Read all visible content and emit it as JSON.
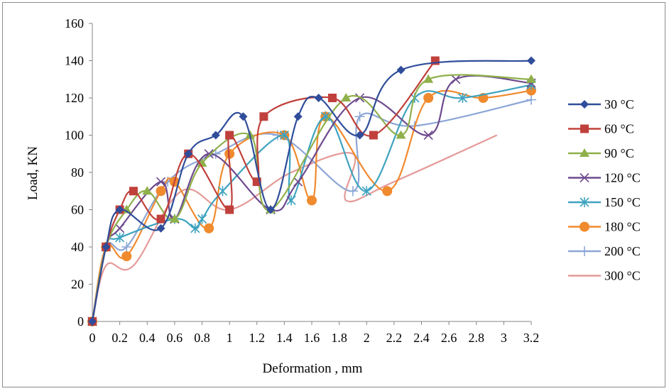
{
  "chart_data": {
    "type": "line",
    "title": "",
    "xlabel": "Deformation , mm",
    "ylabel": "Load, KN",
    "xlim": [
      0,
      3.2
    ],
    "ylim": [
      0,
      160
    ],
    "x_ticks": [
      "0",
      "0.2",
      "0.4",
      "0.6",
      "0.8",
      "1",
      "1.2",
      "1.4",
      "1.6",
      "1.8",
      "2",
      "2.2",
      "2.4",
      "2.6",
      "2.8",
      "3",
      "3.2"
    ],
    "y_ticks": [
      "0",
      "20",
      "40",
      "60",
      "80",
      "100",
      "120",
      "140",
      "160"
    ],
    "grid": false,
    "legend_position": "right",
    "series": [
      {
        "name": "30 °C",
        "color": "#2f4d9a",
        "marker": "diamond",
        "points": [
          [
            0,
            0
          ],
          [
            0.1,
            40
          ],
          [
            0.2,
            60
          ],
          [
            0.5,
            50
          ],
          [
            0.7,
            90
          ],
          [
            0.9,
            100
          ],
          [
            1.1,
            110
          ],
          [
            1.3,
            60
          ],
          [
            1.5,
            110
          ],
          [
            1.65,
            120
          ],
          [
            1.95,
            100
          ],
          [
            2.25,
            135
          ],
          [
            3.2,
            140
          ]
        ]
      },
      {
        "name": "60 °C",
        "color": "#c0403b",
        "marker": "square",
        "points": [
          [
            0,
            0
          ],
          [
            0.1,
            40
          ],
          [
            0.2,
            60
          ],
          [
            0.3,
            70
          ],
          [
            0.5,
            55
          ],
          [
            0.7,
            90
          ],
          [
            1,
            60
          ],
          [
            1,
            100
          ],
          [
            1.2,
            75
          ],
          [
            1.25,
            110
          ],
          [
            1.75,
            120
          ],
          [
            2.05,
            100
          ],
          [
            2.5,
            140
          ]
        ]
      },
      {
        "name": "90 °C",
        "color": "#8fb04a",
        "marker": "triangle",
        "points": [
          [
            0,
            0
          ],
          [
            0.1,
            40
          ],
          [
            0.25,
            60
          ],
          [
            0.4,
            70
          ],
          [
            0.6,
            55
          ],
          [
            0.8,
            85
          ],
          [
            1.15,
            100
          ],
          [
            1.3,
            60
          ],
          [
            1.85,
            120
          ],
          [
            2.25,
            100
          ],
          [
            2.45,
            130
          ],
          [
            3.2,
            130
          ]
        ]
      },
      {
        "name": "120 °C",
        "color": "#6e4a8e",
        "marker": "cross",
        "points": [
          [
            0,
            0
          ],
          [
            0.1,
            40
          ],
          [
            0.2,
            50
          ],
          [
            0.5,
            75
          ],
          [
            0.6,
            55
          ],
          [
            0.85,
            90
          ],
          [
            1.3,
            60
          ],
          [
            1.5,
            75
          ],
          [
            1.95,
            120
          ],
          [
            2.45,
            100
          ],
          [
            2.65,
            130
          ],
          [
            3.2,
            128
          ]
        ]
      },
      {
        "name": "150 °C",
        "color": "#3ea3bf",
        "marker": "asterisk",
        "points": [
          [
            0,
            0
          ],
          [
            0.1,
            40
          ],
          [
            0.2,
            45
          ],
          [
            0.6,
            55
          ],
          [
            0.75,
            50
          ],
          [
            0.8,
            55
          ],
          [
            0.95,
            70
          ],
          [
            1.4,
            100
          ],
          [
            1.45,
            65
          ],
          [
            1.7,
            110
          ],
          [
            2,
            70
          ],
          [
            2.35,
            120
          ],
          [
            2.7,
            120
          ],
          [
            3.2,
            127
          ]
        ]
      },
      {
        "name": "180 °C",
        "color": "#f08a2e",
        "marker": "circle",
        "points": [
          [
            0,
            0
          ],
          [
            0.1,
            40
          ],
          [
            0.25,
            35
          ],
          [
            0.5,
            70
          ],
          [
            0.6,
            75
          ],
          [
            0.85,
            50
          ],
          [
            1,
            90
          ],
          [
            1.4,
            100
          ],
          [
            1.6,
            65
          ],
          [
            1.7,
            110
          ],
          [
            2.15,
            70
          ],
          [
            2.45,
            120
          ],
          [
            2.85,
            120
          ],
          [
            3.2,
            124
          ]
        ]
      },
      {
        "name": "200 °C",
        "color": "#8ca6d6",
        "marker": "plus",
        "points": [
          [
            0,
            0
          ],
          [
            0.1,
            40
          ],
          [
            0.25,
            40
          ],
          [
            0.55,
            75
          ],
          [
            0.9,
            90
          ],
          [
            1.35,
            100
          ],
          [
            1.9,
            70
          ],
          [
            1.95,
            110
          ],
          [
            2.35,
            105
          ],
          [
            3.2,
            119
          ]
        ]
      },
      {
        "name": "300 °C",
        "color": "#e49a98",
        "marker": "none",
        "points": [
          [
            0,
            0
          ],
          [
            0.1,
            30
          ],
          [
            0.3,
            30
          ],
          [
            0.65,
            70
          ],
          [
            1,
            60
          ],
          [
            1.45,
            80
          ],
          [
            1.9,
            90
          ],
          [
            1.85,
            65
          ],
          [
            2.2,
            75
          ],
          [
            2.95,
            100
          ]
        ]
      }
    ]
  }
}
